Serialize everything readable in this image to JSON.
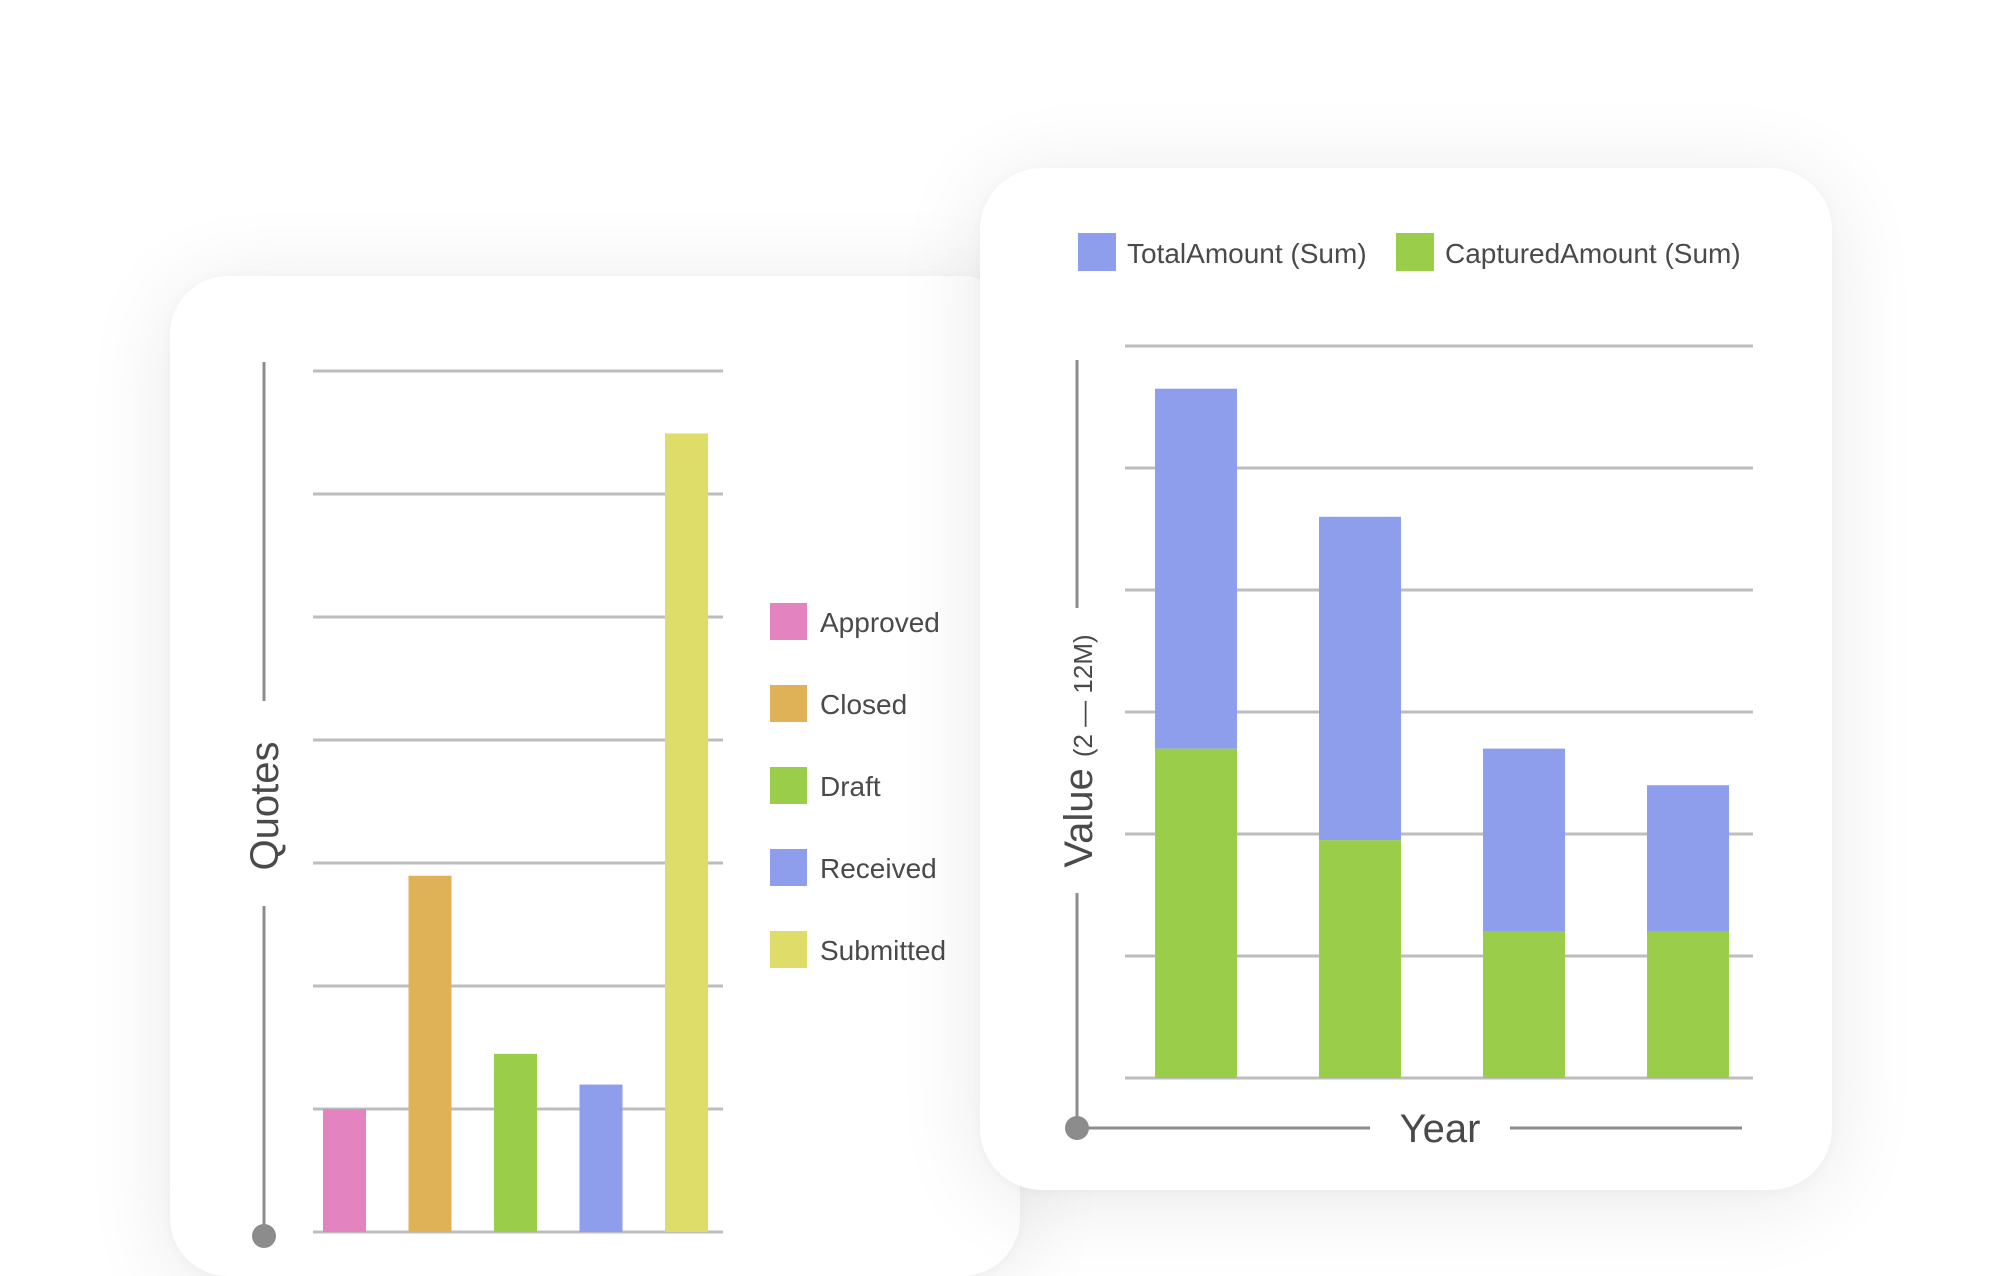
{
  "chart_data": [
    {
      "type": "bar",
      "title": "",
      "xlabel": "",
      "ylabel": "Quotes",
      "ylim": [
        0,
        7
      ],
      "grid": true,
      "legend_placement": "right",
      "categories": [
        "Approved",
        "Closed",
        "Draft",
        "Received",
        "Submitted"
      ],
      "values": [
        1.0,
        2.9,
        1.45,
        1.2,
        6.5
      ],
      "colors": [
        "#e384c1",
        "#e0b257",
        "#9acd4a",
        "#8e9eed",
        "#dedd6a"
      ],
      "legend": [
        "Approved",
        "Closed",
        "Draft",
        "Received",
        "Submitted"
      ]
    },
    {
      "type": "bar",
      "stacked": true,
      "title": "",
      "xlabel": "Year",
      "ylabel": "Value",
      "ylabel_sub": "(2 — 12M)",
      "ylim": [
        0,
        12
      ],
      "grid": true,
      "legend_placement": "top",
      "categories": [
        "",
        "",
        "",
        ""
      ],
      "series": [
        {
          "name": "CapturedAmount (Sum)",
          "values": [
            5.4,
            3.9,
            2.4,
            2.4
          ],
          "color": "#9acd4a"
        },
        {
          "name": "TotalAmount (Sum)",
          "values": [
            5.9,
            5.3,
            3.0,
            2.4
          ],
          "color": "#8e9eed"
        }
      ],
      "legend": [
        {
          "label": "TotalAmount (Sum)",
          "color": "#8e9eed"
        },
        {
          "label": "CapturedAmount (Sum)",
          "color": "#9acd4a"
        }
      ]
    }
  ]
}
